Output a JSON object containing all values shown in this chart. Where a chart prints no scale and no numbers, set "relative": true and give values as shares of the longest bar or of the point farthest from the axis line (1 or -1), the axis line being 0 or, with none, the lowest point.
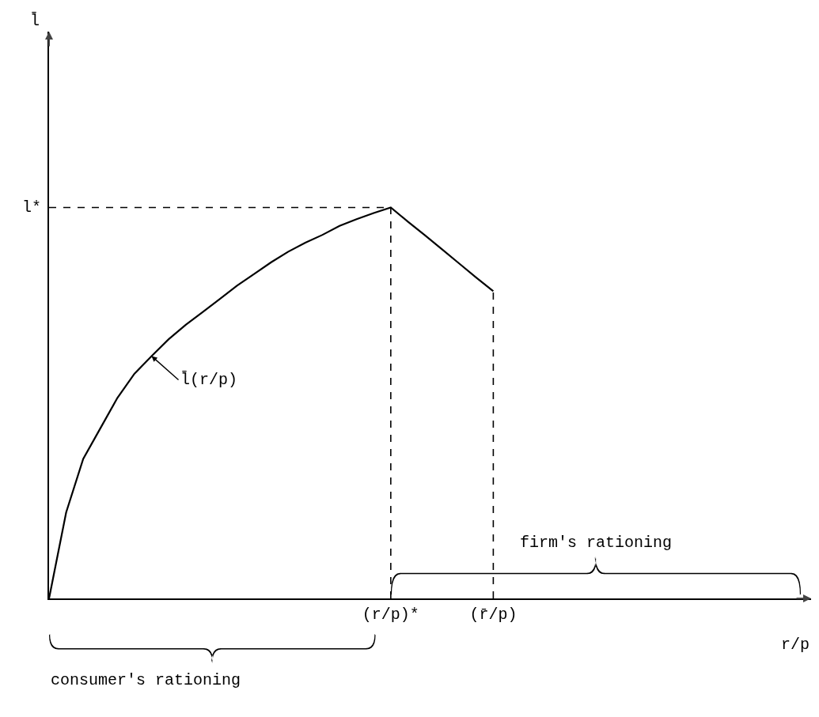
{
  "chart_data": {
    "type": "line",
    "relative": true,
    "xlabel": "r/p",
    "grid": false,
    "legend": false,
    "marker": "none",
    "line_style": "solid",
    "categories": [
      null,
      null,
      null,
      null,
      null,
      null,
      null,
      null,
      null,
      null,
      null,
      null,
      null,
      null,
      null,
      null,
      null,
      null,
      null,
      null,
      "(r/p)*",
      null,
      null,
      null,
      null,
      null,
      "(r̄/p)",
      null,
      null,
      null,
      null,
      null,
      null,
      null,
      null,
      null,
      null,
      null,
      null,
      null,
      null,
      null,
      null,
      null,
      null
    ],
    "series": [
      {
        "name": "l̄(r/p)",
        "color": "#000000",
        "values": [
          0,
          0.22,
          0.357,
          0.435,
          0.513,
          0.575,
          0.62,
          0.663,
          0.7,
          0.733,
          0.766,
          0.8,
          0.83,
          0.86,
          0.887,
          0.91,
          0.93,
          0.953,
          0.97,
          0.986,
          1,
          0.964,
          0.929,
          0.893,
          0.857,
          0.821,
          0.786,
          null,
          null,
          null,
          null,
          null,
          null,
          null,
          null,
          null,
          null,
          null,
          null,
          null,
          null,
          null,
          null,
          null,
          null
        ]
      }
    ],
    "ref_lines": [
      {
        "axis": "y",
        "value": 1,
        "label": "l*",
        "line_style": "dashed",
        "color": "#000000"
      },
      {
        "axis": "x",
        "value": "(r/p)*",
        "line_style": "dashed",
        "color": "#000000"
      },
      {
        "axis": "x",
        "value": "(r̄/p)",
        "line_style": "dashed",
        "color": "#000000"
      }
    ],
    "annotations": [
      "consumer's rationing",
      "firm's rationing",
      "l̄"
    ]
  }
}
